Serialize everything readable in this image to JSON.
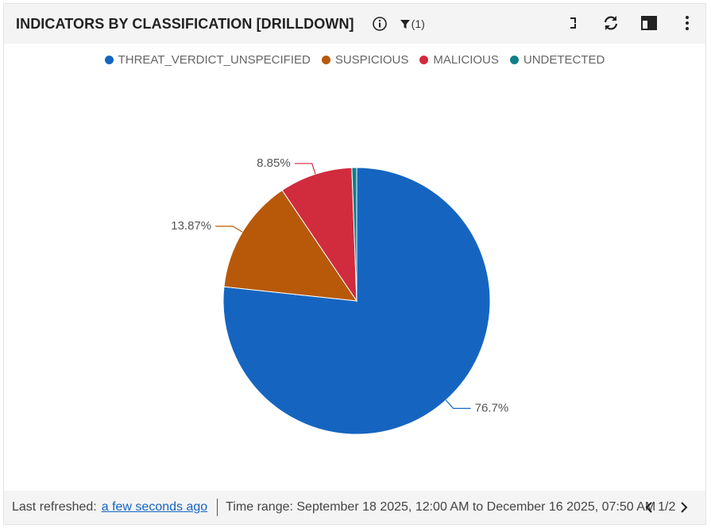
{
  "widget": {
    "title": "INDICATORS BY CLASSIFICATION [DRILLDOWN]",
    "filter_count": "(1)"
  },
  "chart_data": {
    "type": "pie",
    "categories": [
      "THREAT_VERDICT_UNSPECIFIED",
      "SUSPICIOUS",
      "MALICIOUS",
      "UNDETECTED"
    ],
    "values": [
      76.7,
      13.87,
      8.85,
      0.58
    ],
    "value_labels": [
      "76.7%",
      "13.87%",
      "8.85%",
      null
    ],
    "colors": [
      "#1565c0",
      "#b8590a",
      "#d12b3e",
      "#0f7f8a"
    ]
  },
  "footer": {
    "refreshed_label": "Last refreshed:",
    "refreshed_value": "a few seconds ago",
    "time_range": "Time range: September 18 2025, 12:00 AM to December 16 2025, 07:50 AM",
    "page": "1/2"
  }
}
